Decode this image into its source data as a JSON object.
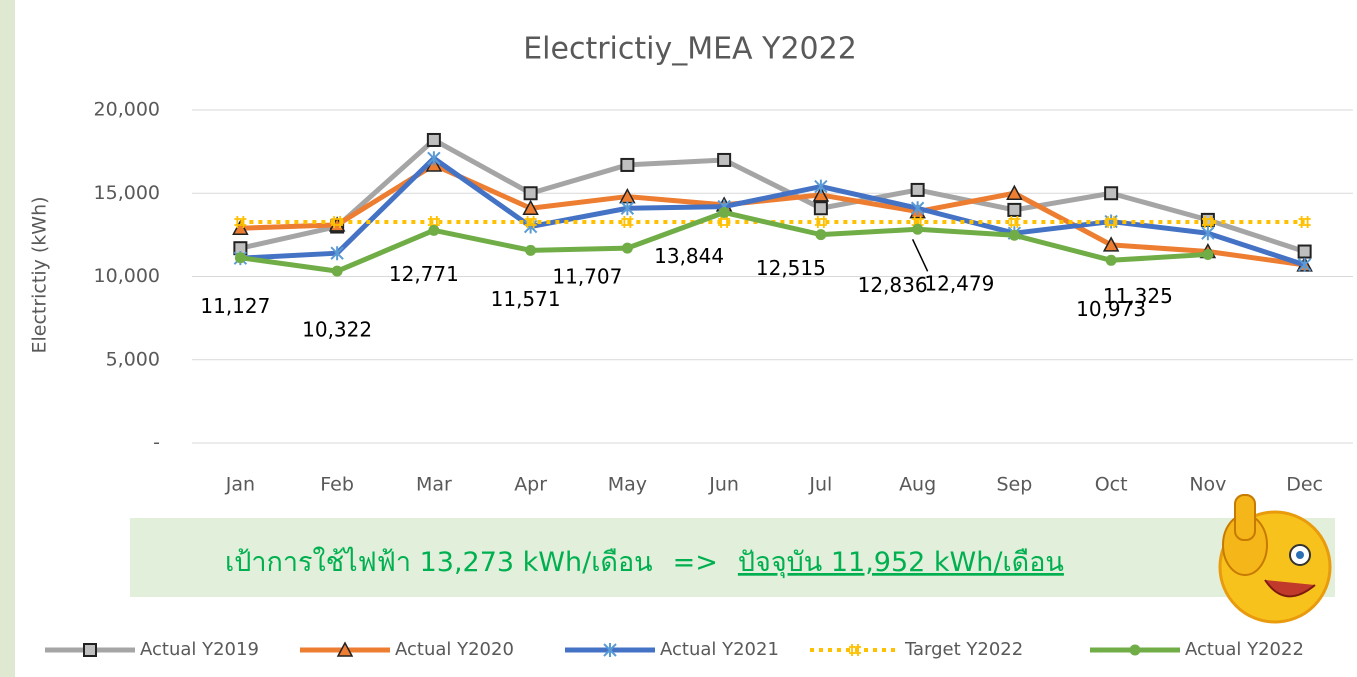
{
  "chart_data": {
    "type": "line",
    "title": "Electrictiy_MEA Y2022",
    "y_label": "Electrictiy (kWh)",
    "categories": [
      "Jan",
      "Feb",
      "Mar",
      "Apr",
      "May",
      "Jun",
      "Jul",
      "Aug",
      "Sep",
      "Oct",
      "Nov",
      "Dec"
    ],
    "ylim": [
      0,
      20000
    ],
    "yticks": [
      {
        "value": 0,
        "label": "-"
      },
      {
        "value": 5000,
        "label": "5,000"
      },
      {
        "value": 10000,
        "label": "10,000"
      },
      {
        "value": 15000,
        "label": "15,000"
      },
      {
        "value": 20000,
        "label": "20,000"
      }
    ],
    "grid": true,
    "legend": "bottom",
    "series": [
      {
        "name": "Actual Y2019",
        "color": "#a5a5a5",
        "marker": "square",
        "values": [
          11700,
          13000,
          18200,
          15000,
          16700,
          17000,
          14100,
          15200,
          14000,
          15000,
          13400,
          11500
        ]
      },
      {
        "name": "Actual Y2020",
        "color": "#ed7d31",
        "marker": "triangle",
        "values": [
          12900,
          13100,
          16700,
          14100,
          14800,
          14300,
          14900,
          13900,
          15000,
          11900,
          11500,
          10700
        ]
      },
      {
        "name": "Actual Y2021",
        "color": "#4472c4",
        "marker": "star",
        "values": [
          11100,
          11400,
          17100,
          13000,
          14100,
          14200,
          15400,
          14100,
          12600,
          13300,
          12600,
          10700
        ]
      },
      {
        "name": "Target Y2022",
        "color": "#ffc000",
        "marker": "hash",
        "dashed": true,
        "values": [
          13273,
          13273,
          13273,
          13273,
          13273,
          13273,
          13273,
          13273,
          13273,
          13273,
          13273,
          13273
        ]
      },
      {
        "name": "Actual Y2022",
        "color": "#70ad47",
        "marker": "circle",
        "values": [
          11127,
          10322,
          12771,
          11571,
          11707,
          13844,
          12515,
          12836,
          12479,
          10973,
          11325,
          null
        ],
        "value_labels": [
          "11,127",
          "10,322",
          "12,771",
          "11,571",
          "11,707",
          "13,844",
          "12,515",
          "12,836",
          "12,479",
          "10,973",
          "11,325",
          null
        ]
      }
    ]
  },
  "banner": {
    "target": "เป้าการใช้ไฟฟ้า 13,273 kWh/เดือน",
    "arrow": "=>",
    "current": "ปัจจุบัน 11,952 kWh/เดือน"
  }
}
